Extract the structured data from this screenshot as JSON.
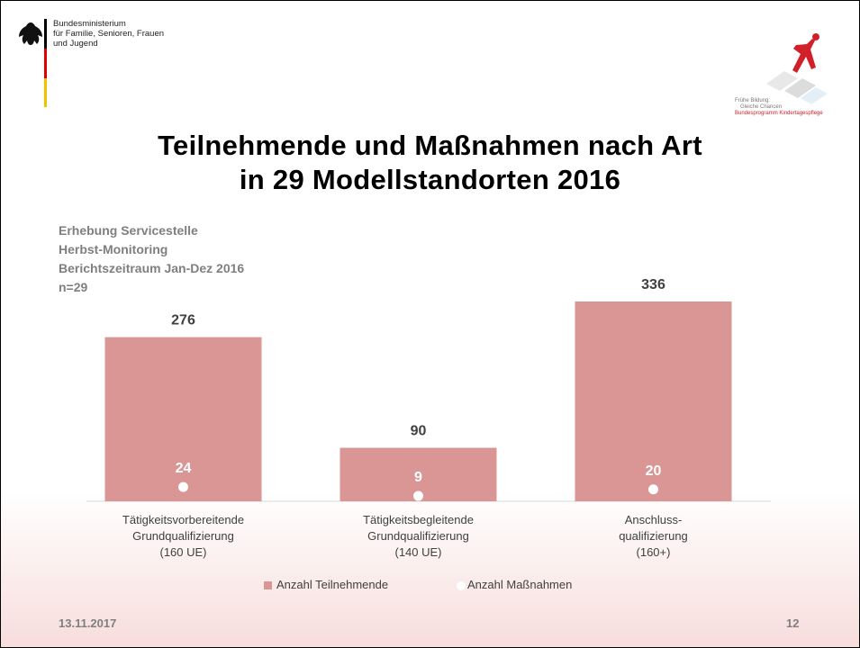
{
  "header": {
    "ministry": [
      "Bundesministerium",
      "für Familie, Senioren, Frauen",
      "und Jugend"
    ],
    "program_logo": [
      "Frühe Bildung:",
      "Gleiche Chancen",
      "Bundesprogramm Kindertagespflege"
    ]
  },
  "chart_data": {
    "type": "bar",
    "title": [
      "Teilnehmende und Maßnahmen nach Art",
      "in 29 Modellstandorten 2016"
    ],
    "notes": [
      "Erhebung Servicestelle",
      "Herbst-Monitoring",
      "Berichtszeitraum Jan-Dez 2016",
      "n=29"
    ],
    "categories": [
      "Tätigkeitsvorbereitende\nGrundqualifizierung\n(160 UE)",
      "Tätigkeitsbegleitende\nGrundqualifizierung\n(140 UE)",
      "Anschluss-\nqualifizierung\n(160+)"
    ],
    "series": [
      {
        "name": "Anzahl Teilnehmende",
        "type": "bar",
        "color": "#d99694",
        "values": [
          276,
          90,
          336
        ]
      },
      {
        "name": "Anzahl Maßnahmen",
        "type": "scatter",
        "color": "#ffffff",
        "values": [
          24,
          9,
          20
        ]
      }
    ]
  },
  "footer": {
    "date": "13.11.2017",
    "page": "12"
  }
}
